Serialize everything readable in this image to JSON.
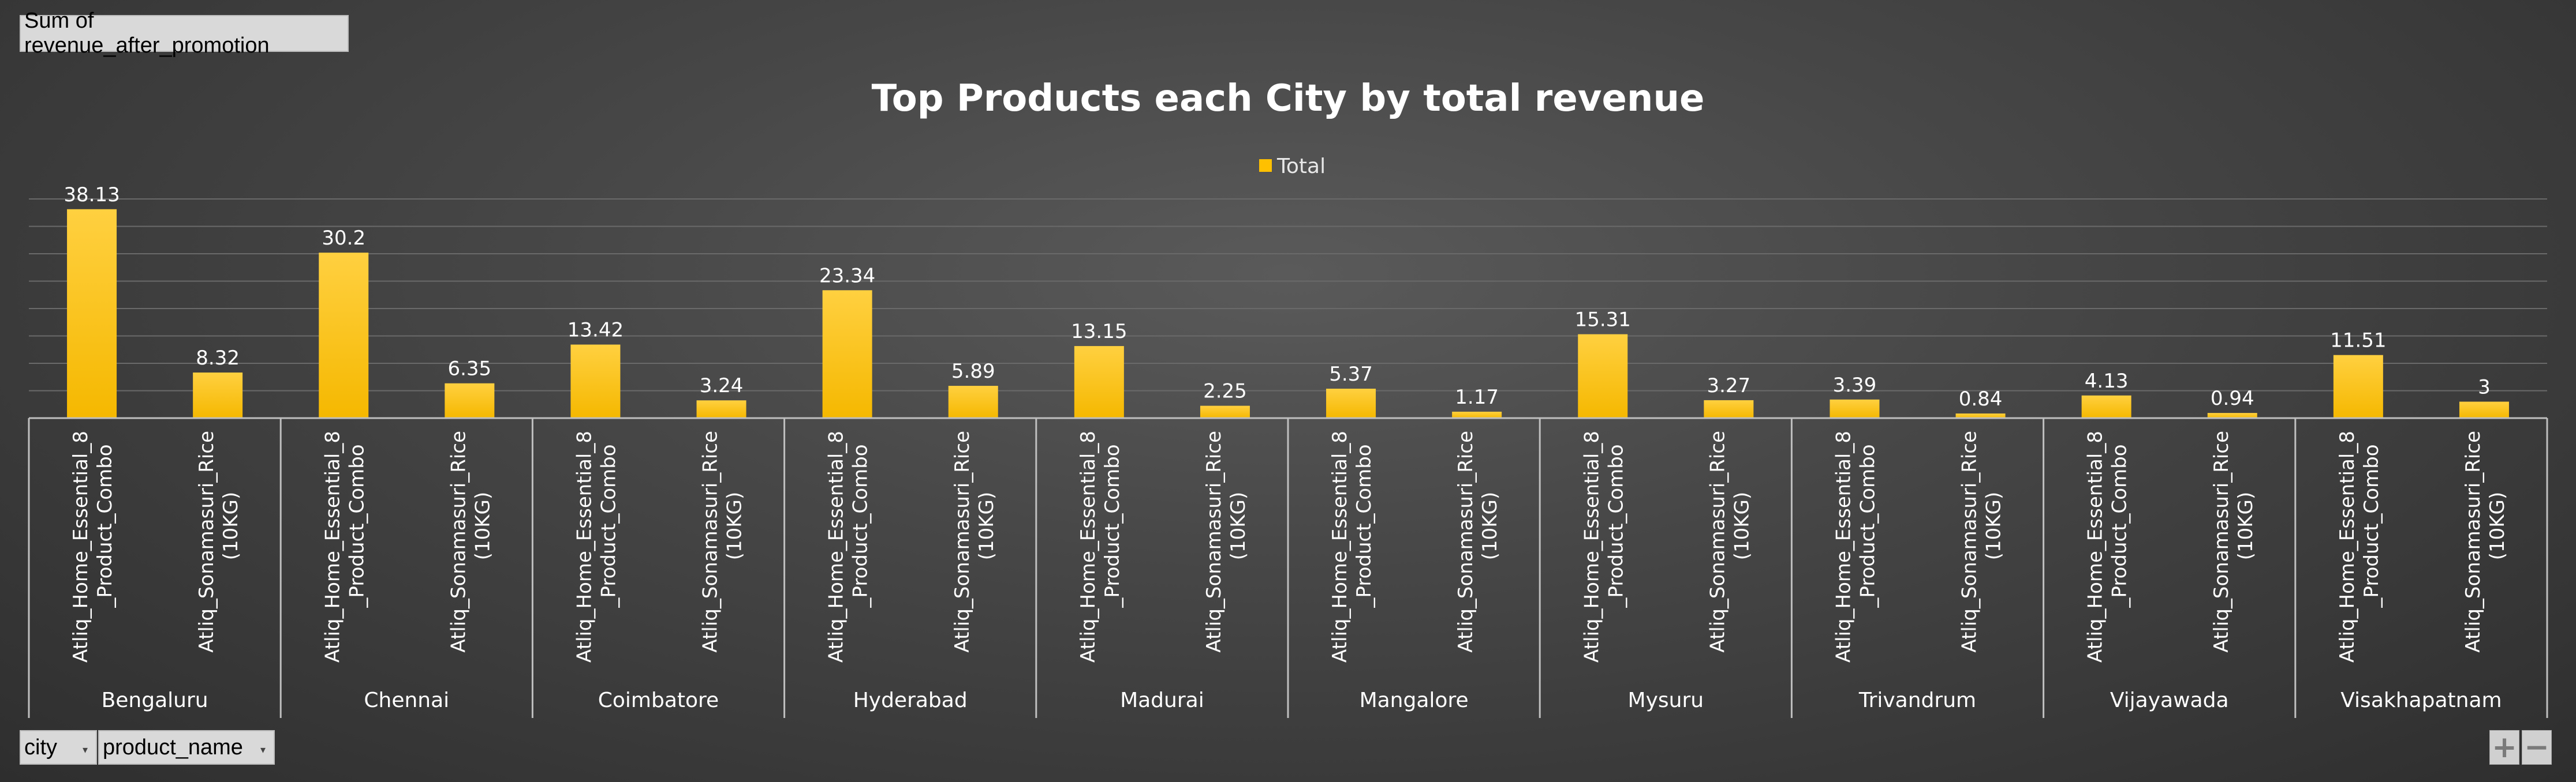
{
  "pivot": {
    "value_field": "Sum of revenue_after_promotion",
    "axis_fields": [
      "city",
      "product_name"
    ]
  },
  "chart_data": {
    "type": "bar",
    "title": "Top Products each City by total revenue",
    "legend": {
      "entries": [
        "Total"
      ],
      "position": "top"
    },
    "series": [
      {
        "name": "Total",
        "color": "#ffc000",
        "values": [
          38.13,
          8.32,
          30.2,
          6.35,
          13.42,
          3.24,
          23.34,
          5.89,
          13.15,
          2.25,
          5.37,
          1.17,
          15.31,
          3.27,
          3.39,
          0.84,
          4.13,
          0.94,
          11.51,
          3
        ]
      }
    ],
    "groups": [
      {
        "city": "Bengaluru",
        "products": [
          "Atliq_Home_Essential_8_Product_Combo",
          "Atliq_Sonamasuri_Rice (10KG)"
        ]
      },
      {
        "city": "Chennai",
        "products": [
          "Atliq_Home_Essential_8_Product_Combo",
          "Atliq_Sonamasuri_Rice (10KG)"
        ]
      },
      {
        "city": "Coimbatore",
        "products": [
          "Atliq_Home_Essential_8_Product_Combo",
          "Atliq_Sonamasuri_Rice (10KG)"
        ]
      },
      {
        "city": "Hyderabad",
        "products": [
          "Atliq_Home_Essential_8_Product_Combo",
          "Atliq_Sonamasuri_Rice (10KG)"
        ]
      },
      {
        "city": "Madurai",
        "products": [
          "Atliq_Home_Essential_8_Product_Combo",
          "Atliq_Sonamasuri_Rice (10KG)"
        ]
      },
      {
        "city": "Mangalore",
        "products": [
          "Atliq_Home_Essential_8_Product_Combo",
          "Atliq_Sonamasuri_Rice (10KG)"
        ]
      },
      {
        "city": "Mysuru",
        "products": [
          "Atliq_Home_Essential_8_Product_Combo",
          "Atliq_Sonamasuri_Rice (10KG)"
        ]
      },
      {
        "city": "Trivandrum",
        "products": [
          "Atliq_Home_Essential_8_Product_Combo",
          "Atliq_Sonamasuri_Rice (10KG)"
        ]
      },
      {
        "city": "Vijayawada",
        "products": [
          "Atliq_Home_Essential_8_Product_Combo",
          "Atliq_Sonamasuri_Rice (10KG)"
        ]
      },
      {
        "city": "Visakhapatnam",
        "products": [
          "Atliq_Home_Essential_8_Product_Combo",
          "Atliq_Sonamasuri_Rice (10KG)"
        ]
      }
    ],
    "category_label_lines": [
      "Atliq_Home_Essential_8",
      "_Product_Combo",
      "Atliq_Sonamasuri_Rice",
      "(10KG)"
    ],
    "ylim": [
      0,
      40
    ],
    "grid": true,
    "y_axis_labels_shown": false
  },
  "zoom": {
    "plus": "+",
    "minus": "−"
  }
}
